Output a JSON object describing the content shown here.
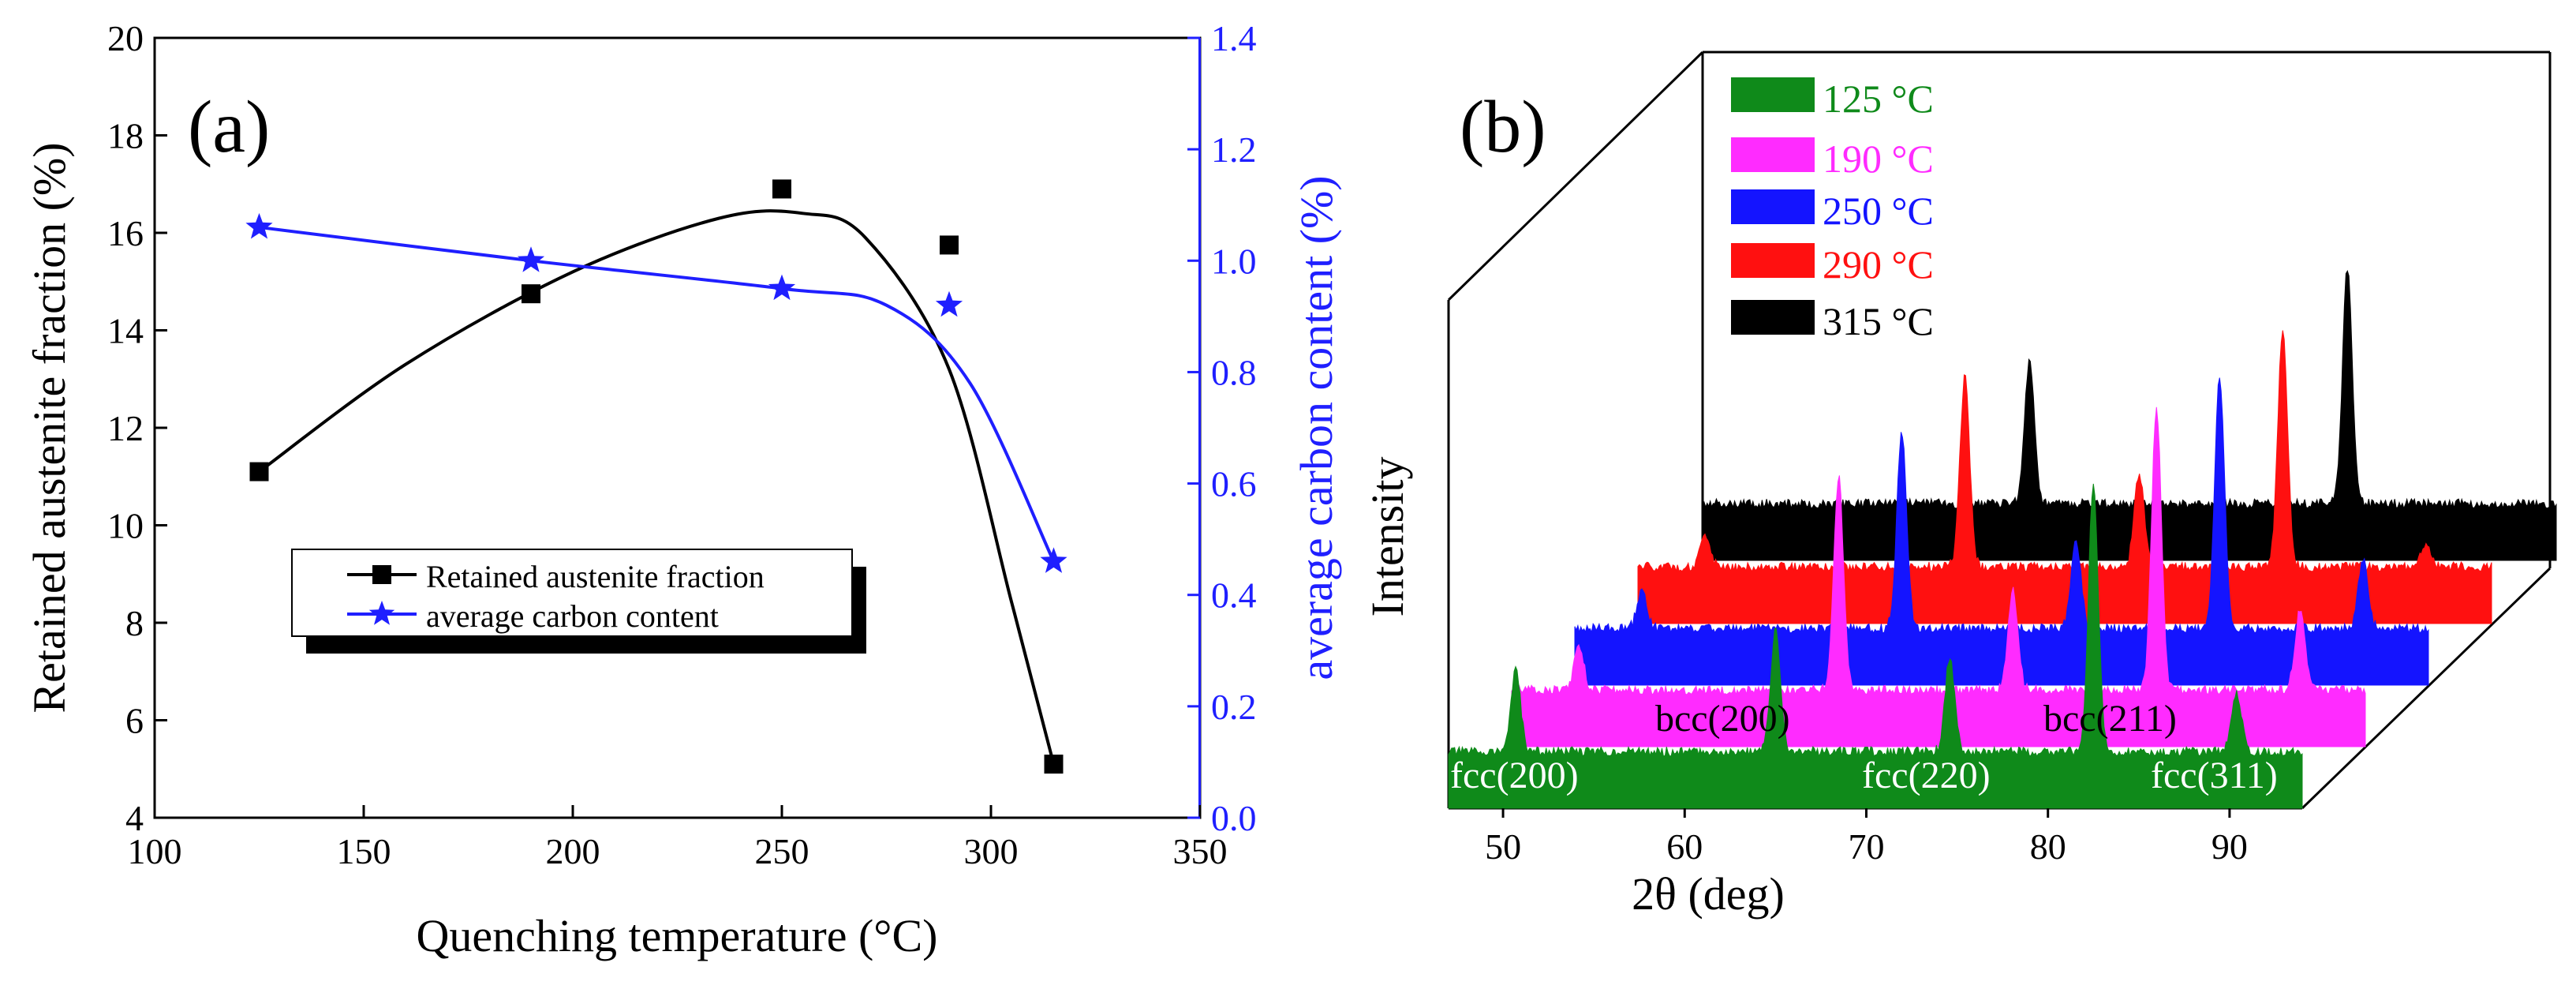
{
  "colors": {
    "black": "#000000",
    "blue": "#1f1fff",
    "green": "#0f8a1a",
    "magenta": "#ff2bff",
    "blue_fill": "#1414ff",
    "red": "#ff1010",
    "grey_shadow": "#000000"
  },
  "chart_data": [
    {
      "type": "line",
      "panel_label": "(a)",
      "xlabel": "Quenching temperature (°C)",
      "ylabel": "Retained austenite fraction (%)",
      "y2label": "average carbon content (%)",
      "xlim": [
        100,
        350
      ],
      "ylim": [
        4,
        20
      ],
      "y2lim": [
        0.0,
        1.4
      ],
      "x_ticks": [
        "100",
        "150",
        "200",
        "250",
        "300",
        "350"
      ],
      "y_ticks": [
        "4",
        "6",
        "8",
        "10",
        "12",
        "14",
        "16",
        "18",
        "20"
      ],
      "y2_ticks": [
        "0.0",
        "0.2",
        "0.4",
        "0.6",
        "0.8",
        "1.0",
        "1.2",
        "1.4"
      ],
      "legend_position": "lower-left",
      "series": [
        {
          "name": "Retained austenite fraction",
          "axis": "left",
          "marker": "square",
          "color": "#000000",
          "x": [
            125,
            190,
            250,
            290,
            315
          ],
          "values": [
            11.1,
            14.75,
            16.9,
            15.75,
            5.1
          ]
        },
        {
          "name": "average carbon content",
          "axis": "right",
          "marker": "star",
          "color": "#1f1fff",
          "x": [
            125,
            190,
            250,
            290,
            315
          ],
          "values": [
            1.06,
            1.0,
            0.95,
            0.92,
            0.46
          ]
        }
      ]
    },
    {
      "type": "area",
      "panel_label": "(b)",
      "xlabel": "2θ (deg)",
      "ylabel": "Intensity",
      "xlim": [
        47,
        94
      ],
      "x_ticks": [
        "50",
        "60",
        "70",
        "80",
        "90"
      ],
      "legend_position": "top-left",
      "series": [
        {
          "name": "125 °C",
          "color": "#0f8a1a",
          "peaks": [
            [
              50.7,
              0.3
            ],
            [
              65.0,
              0.45
            ],
            [
              74.6,
              0.35
            ],
            [
              82.5,
              1.0
            ],
            [
              90.4,
              0.22
            ]
          ]
        },
        {
          "name": "190 °C",
          "color": "#ff2bff",
          "peaks": [
            [
              50.7,
              0.15
            ],
            [
              65.0,
              0.75
            ],
            [
              74.6,
              0.35
            ],
            [
              82.5,
              1.0
            ],
            [
              90.4,
              0.28
            ]
          ]
        },
        {
          "name": "250 °C",
          "color": "#1414ff",
          "peaks": [
            [
              50.7,
              0.15
            ],
            [
              65.0,
              0.78
            ],
            [
              74.6,
              0.35
            ],
            [
              82.5,
              1.0
            ],
            [
              90.4,
              0.28
            ]
          ]
        },
        {
          "name": "290 °C",
          "color": "#ff1010",
          "peaks": [
            [
              50.7,
              0.12
            ],
            [
              65.0,
              0.8
            ],
            [
              74.6,
              0.4
            ],
            [
              82.5,
              1.0
            ],
            [
              90.4,
              0.1
            ]
          ]
        },
        {
          "name": "315 °C",
          "color": "#000000",
          "peaks": [
            [
              65.0,
              0.6
            ],
            [
              82.5,
              1.0
            ]
          ]
        }
      ],
      "annotations": [
        "fcc(200)",
        "bcc(200)",
        "fcc(220)",
        "bcc(211)",
        "fcc(311)"
      ]
    }
  ]
}
